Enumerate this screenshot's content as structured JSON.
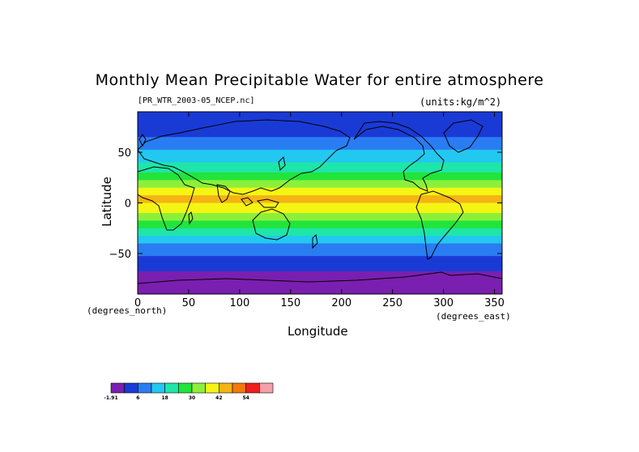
{
  "chart_data": {
    "type": "heatmap",
    "title": "Monthly Mean Precipitable Water for entire atmosphere",
    "file_label": "[PR_WTR_2003-05_NCEP.nc]",
    "units_label": "(units:kg/m^2)",
    "xlabel": "Longitude",
    "ylabel": "Latitude",
    "x_unit_label": "(degrees_east)",
    "y_unit_label": "(degrees_north)",
    "xlim": [
      0,
      357.5
    ],
    "ylim": [
      -90,
      90
    ],
    "x_ticks": [
      0,
      50,
      100,
      150,
      200,
      250,
      300,
      350
    ],
    "y_ticks": [
      -50,
      0,
      50
    ],
    "colorbar": {
      "levels": [
        "-1.91",
        "6",
        "18",
        "30",
        "42",
        "54"
      ],
      "colors": [
        "#7a1fb0",
        "#1a3ad6",
        "#2a7cf2",
        "#22c8f0",
        "#1ee6a8",
        "#22e43a",
        "#8cf03a",
        "#f5f514",
        "#f5b414",
        "#f5780a",
        "#f01e1e",
        "#f5a0a8"
      ]
    },
    "zonal_mean_profile": [
      {
        "lat": 90,
        "value": 4
      },
      {
        "lat": 75,
        "value": 7
      },
      {
        "lat": 60,
        "value": 12
      },
      {
        "lat": 50,
        "value": 17
      },
      {
        "lat": 40,
        "value": 22
      },
      {
        "lat": 30,
        "value": 28
      },
      {
        "lat": 20,
        "value": 36
      },
      {
        "lat": 10,
        "value": 44
      },
      {
        "lat": 5,
        "value": 47
      },
      {
        "lat": 0,
        "value": 46
      },
      {
        "lat": -10,
        "value": 40
      },
      {
        "lat": -20,
        "value": 31
      },
      {
        "lat": -30,
        "value": 24
      },
      {
        "lat": -40,
        "value": 16
      },
      {
        "lat": -50,
        "value": 11
      },
      {
        "lat": -60,
        "value": 7
      },
      {
        "lat": -70,
        "value": 3
      },
      {
        "lat": -90,
        "value": 1
      }
    ]
  }
}
